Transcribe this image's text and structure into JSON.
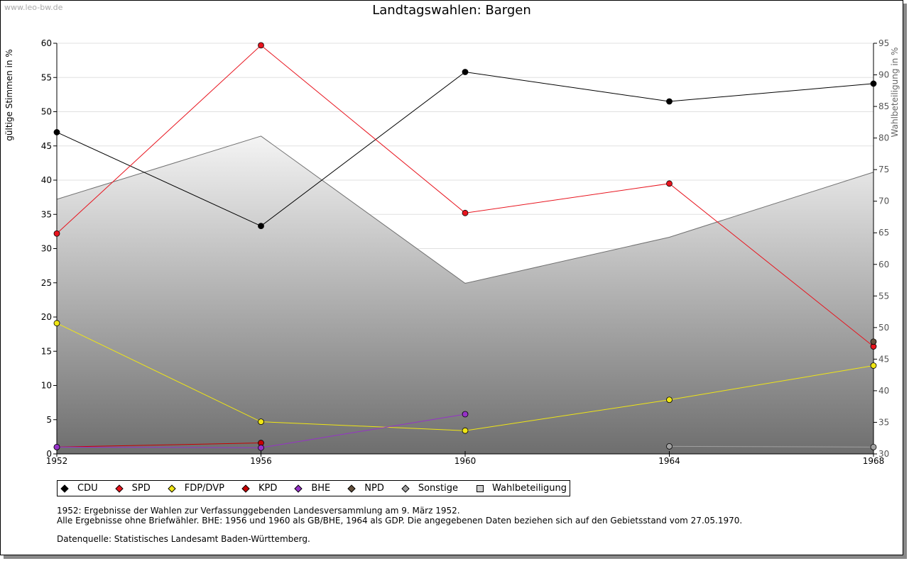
{
  "watermark": "www.leo-bw.de",
  "chart_data": {
    "type": "line",
    "title": "Landtagswahlen: Bargen",
    "ylabel": "gültige Stimmen in %",
    "y2label": "Wahlbeteiligung in %",
    "x": [
      1952,
      1956,
      1960,
      1964,
      1968
    ],
    "xlim": [
      1952,
      1968
    ],
    "ylim": [
      0,
      60
    ],
    "y2lim": [
      30,
      95
    ],
    "yticks": [
      0,
      5,
      10,
      15,
      20,
      25,
      30,
      35,
      40,
      45,
      50,
      55,
      60
    ],
    "y2ticks": [
      30,
      35,
      40,
      45,
      50,
      55,
      60,
      65,
      70,
      75,
      80,
      85,
      90,
      95
    ],
    "grid": true,
    "series": [
      {
        "name": "CDU",
        "color": "#000000",
        "values": [
          47.0,
          33.3,
          55.8,
          51.5,
          54.1
        ]
      },
      {
        "name": "SPD",
        "color": "#e8141e",
        "values": [
          32.2,
          59.7,
          35.2,
          39.5,
          15.7
        ]
      },
      {
        "name": "FDP/DVP",
        "color": "#f0e614",
        "values": [
          19.1,
          4.7,
          3.4,
          7.9,
          12.9
        ]
      },
      {
        "name": "KPD",
        "color": "#c80000",
        "values": [
          1.0,
          1.6,
          null,
          null,
          null
        ]
      },
      {
        "name": "BHE",
        "color": "#9632c8",
        "values": [
          1.0,
          0.9,
          5.8,
          null,
          null
        ]
      },
      {
        "name": "NPD",
        "color": "#64503c",
        "values": [
          null,
          null,
          null,
          null,
          16.4
        ]
      },
      {
        "name": "Sonstige",
        "color": "#a0a0a0",
        "values": [
          null,
          null,
          null,
          1.1,
          1.0
        ]
      }
    ],
    "turnout": {
      "name": "Wahlbeteiligung",
      "axis": "right",
      "values": [
        70.3,
        80.3,
        57.0,
        64.3,
        74.6
      ]
    },
    "legend": "bottom"
  },
  "notes": [
    "1952: Ergebnisse der Wahlen zur Verfassunggebenden Landesversammlung am 9. März 1952.",
    "Alle Ergebnisse ohne Briefwähler. BHE: 1956 und 1960 als GB/BHE, 1964 als GDP. Die angegebenen Daten beziehen sich auf den Gebietsstand vom 27.05.1970."
  ],
  "source": "Datenquelle: Statistisches Landesamt Baden-Württemberg."
}
